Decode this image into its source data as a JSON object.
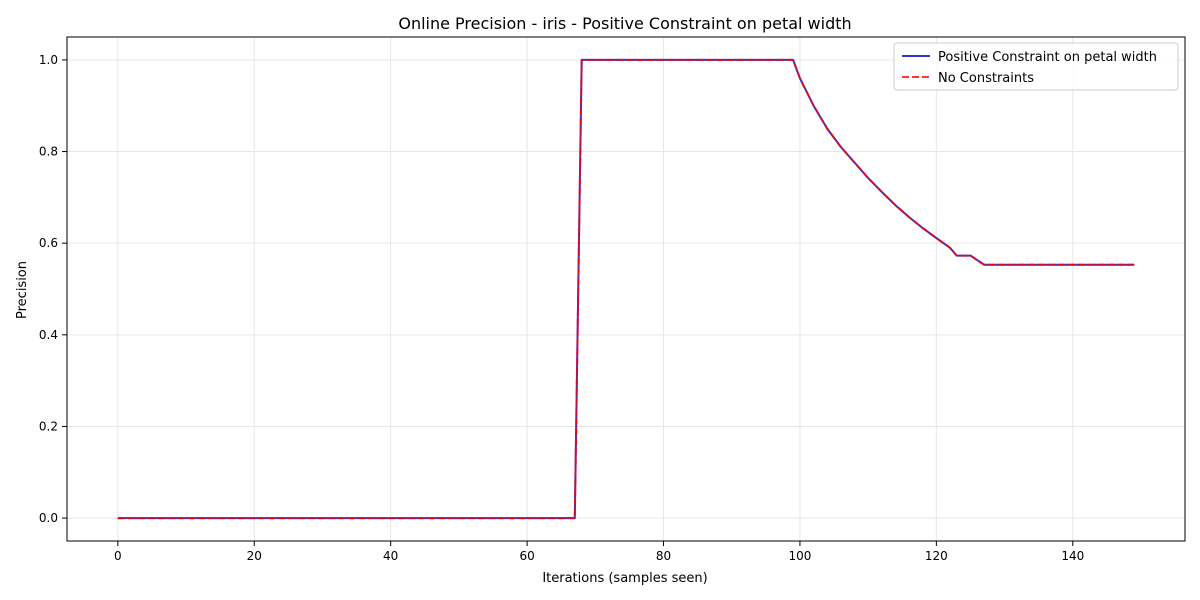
{
  "chart_data": {
    "type": "line",
    "title": "Online Precision - iris - Positive Constraint on petal width",
    "xlabel": "Iterations (samples seen)",
    "ylabel": "Precision",
    "xlim": [
      -7.45,
      156.45
    ],
    "ylim": [
      -0.05,
      1.05
    ],
    "xticks": [
      0,
      20,
      40,
      60,
      80,
      100,
      120,
      140
    ],
    "yticks": [
      0.0,
      0.2,
      0.4,
      0.6,
      0.8,
      1.0
    ],
    "xtick_labels": [
      "0",
      "20",
      "40",
      "60",
      "80",
      "100",
      "120",
      "140"
    ],
    "ytick_labels": [
      "0.0",
      "0.2",
      "0.4",
      "0.6",
      "0.8",
      "1.0"
    ],
    "grid": true,
    "legend_position": "top-right",
    "series": [
      {
        "name": "Positive Constraint on petal width",
        "color": "#0000cc",
        "style": "solid",
        "x": [
          0,
          67,
          68,
          99,
          100,
          102,
          104,
          106,
          108,
          110,
          112,
          114,
          116,
          118,
          120,
          122,
          123,
          125,
          127,
          149
        ],
        "y": [
          0.0,
          0.0,
          1.0,
          1.0,
          0.96,
          0.9,
          0.85,
          0.81,
          0.776,
          0.742,
          0.712,
          0.683,
          0.657,
          0.633,
          0.611,
          0.59,
          0.573,
          0.573,
          0.553,
          0.553
        ]
      },
      {
        "name": "No Constraints",
        "color": "#ff0000",
        "style": "dashed",
        "x": [
          0,
          67,
          68,
          99,
          100,
          102,
          104,
          106,
          108,
          110,
          112,
          114,
          116,
          118,
          120,
          122,
          123,
          125,
          127,
          149
        ],
        "y": [
          0.0,
          0.0,
          1.0,
          1.0,
          0.96,
          0.9,
          0.85,
          0.81,
          0.776,
          0.742,
          0.712,
          0.683,
          0.657,
          0.633,
          0.611,
          0.59,
          0.573,
          0.573,
          0.553,
          0.553
        ]
      }
    ]
  }
}
